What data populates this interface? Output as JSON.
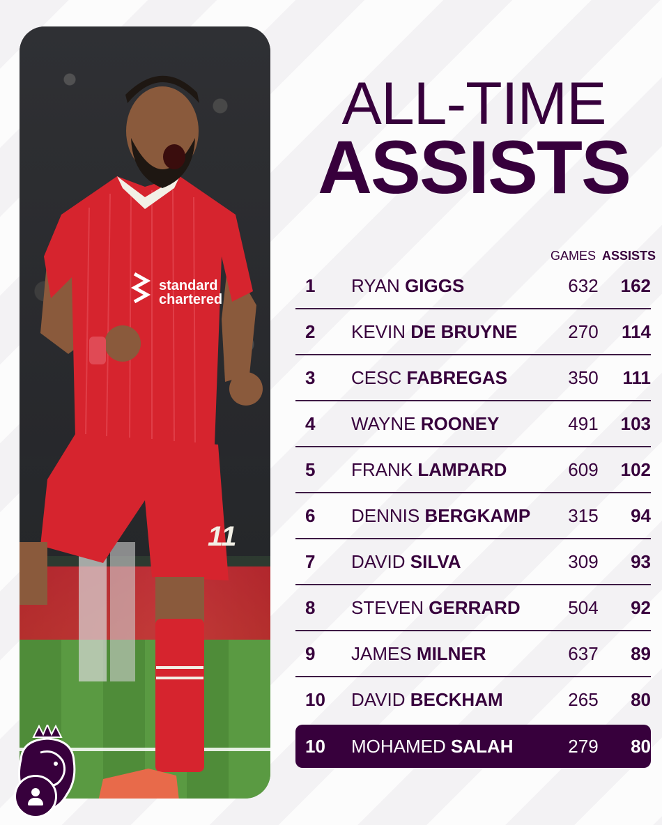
{
  "title": {
    "line1": "ALL-TIME",
    "line2": "ASSISTS"
  },
  "columns": {
    "games": "GAMES",
    "assists": "ASSISTS"
  },
  "rows": [
    {
      "rank": "1",
      "first": "RYAN",
      "last": "GIGGS",
      "games": "632",
      "assists": "162"
    },
    {
      "rank": "2",
      "first": "KEVIN",
      "last": "DE BRUYNE",
      "games": "270",
      "assists": "114"
    },
    {
      "rank": "3",
      "first": "CESC",
      "last": "FABREGAS",
      "games": "350",
      "assists": "111"
    },
    {
      "rank": "4",
      "first": "WAYNE",
      "last": "ROONEY",
      "games": "491",
      "assists": "103"
    },
    {
      "rank": "5",
      "first": "FRANK",
      "last": "LAMPARD",
      "games": "609",
      "assists": "102"
    },
    {
      "rank": "6",
      "first": "DENNIS",
      "last": "BERGKAMP",
      "games": "315",
      "assists": "94"
    },
    {
      "rank": "7",
      "first": "DAVID",
      "last": "SILVA",
      "games": "309",
      "assists": "93"
    },
    {
      "rank": "8",
      "first": "STEVEN",
      "last": "GERRARD",
      "games": "504",
      "assists": "92"
    },
    {
      "rank": "9",
      "first": "JAMES",
      "last": "MILNER",
      "games": "637",
      "assists": "89"
    },
    {
      "rank": "10",
      "first": "DAVID",
      "last": "BECKHAM",
      "games": "265",
      "assists": "80"
    },
    {
      "rank": "10",
      "first": "MOHAMED",
      "last": "SALAH",
      "games": "279",
      "assists": "80",
      "highlighted": true
    }
  ],
  "photo": {
    "shirt_sponsor": "standard chartered",
    "shirt_number": "11"
  },
  "colors": {
    "brand_purple": "#37003c",
    "background": "#f3f2f4",
    "kit_red": "#d6242e"
  },
  "icons": {
    "league_logo": "premier-league-lion-icon",
    "profile": "user-avatar-icon"
  }
}
